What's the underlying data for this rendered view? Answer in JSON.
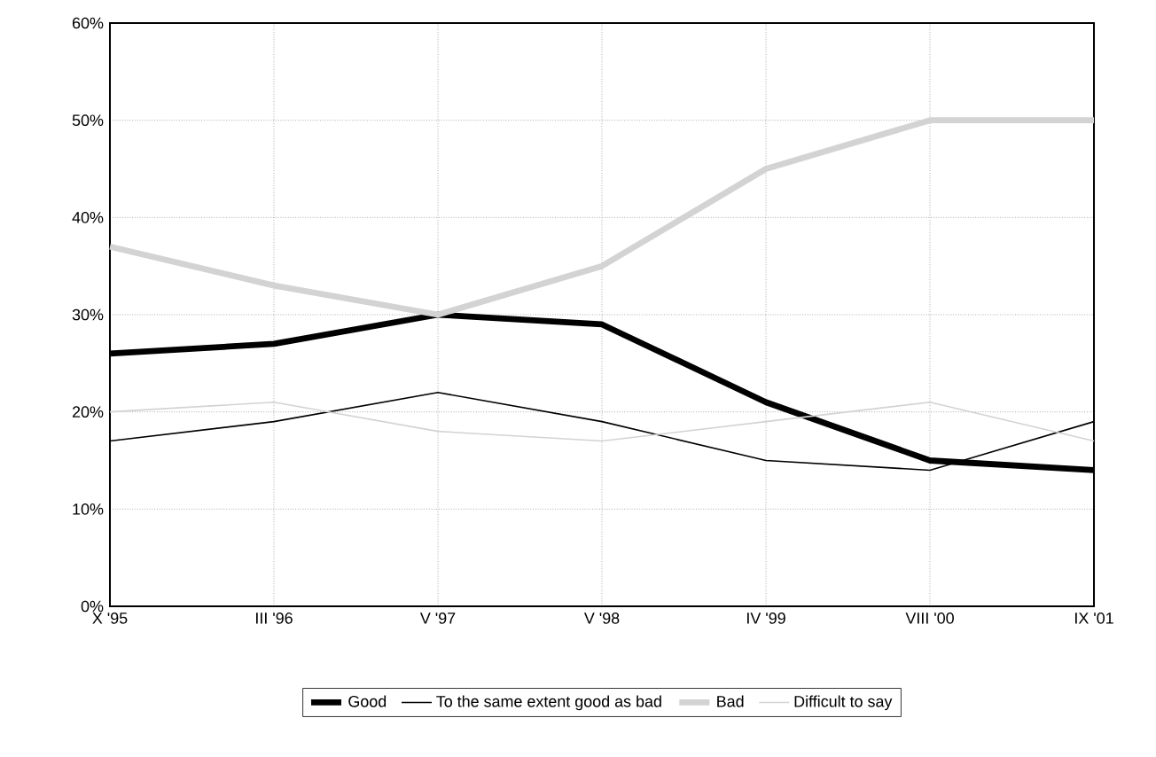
{
  "chart_data": {
    "type": "line",
    "categories": [
      "X '95",
      "III '96",
      "V '97",
      "V '98",
      "IV '99",
      "VIII '00",
      "IX '01"
    ],
    "series": [
      {
        "name": "Good",
        "color": "#000000",
        "values": [
          26,
          27,
          30,
          29,
          21,
          15,
          14
        ]
      },
      {
        "name": "To the same extent good as bad",
        "color": "#000000",
        "values": [
          17,
          19,
          22,
          19,
          15,
          14,
          19
        ]
      },
      {
        "name": "Bad",
        "color": "#d3d3d3",
        "values": [
          37,
          33,
          30,
          35,
          45,
          50,
          50
        ]
      },
      {
        "name": "Difficult to say",
        "color": "#d3d3d3",
        "values": [
          20,
          21,
          18,
          17,
          19,
          21,
          17
        ]
      }
    ],
    "ylim": [
      0,
      60
    ],
    "yticks": [
      {
        "value": 0,
        "label": "0%"
      },
      {
        "value": 10,
        "label": "10%"
      },
      {
        "value": 20,
        "label": "20%"
      },
      {
        "value": 30,
        "label": "30%"
      },
      {
        "value": 40,
        "label": "40%"
      },
      {
        "value": 50,
        "label": "50%"
      },
      {
        "value": 60,
        "label": "60%"
      }
    ],
    "grid": true,
    "legend": "bottom",
    "marker": "none",
    "line_style": "solid"
  }
}
